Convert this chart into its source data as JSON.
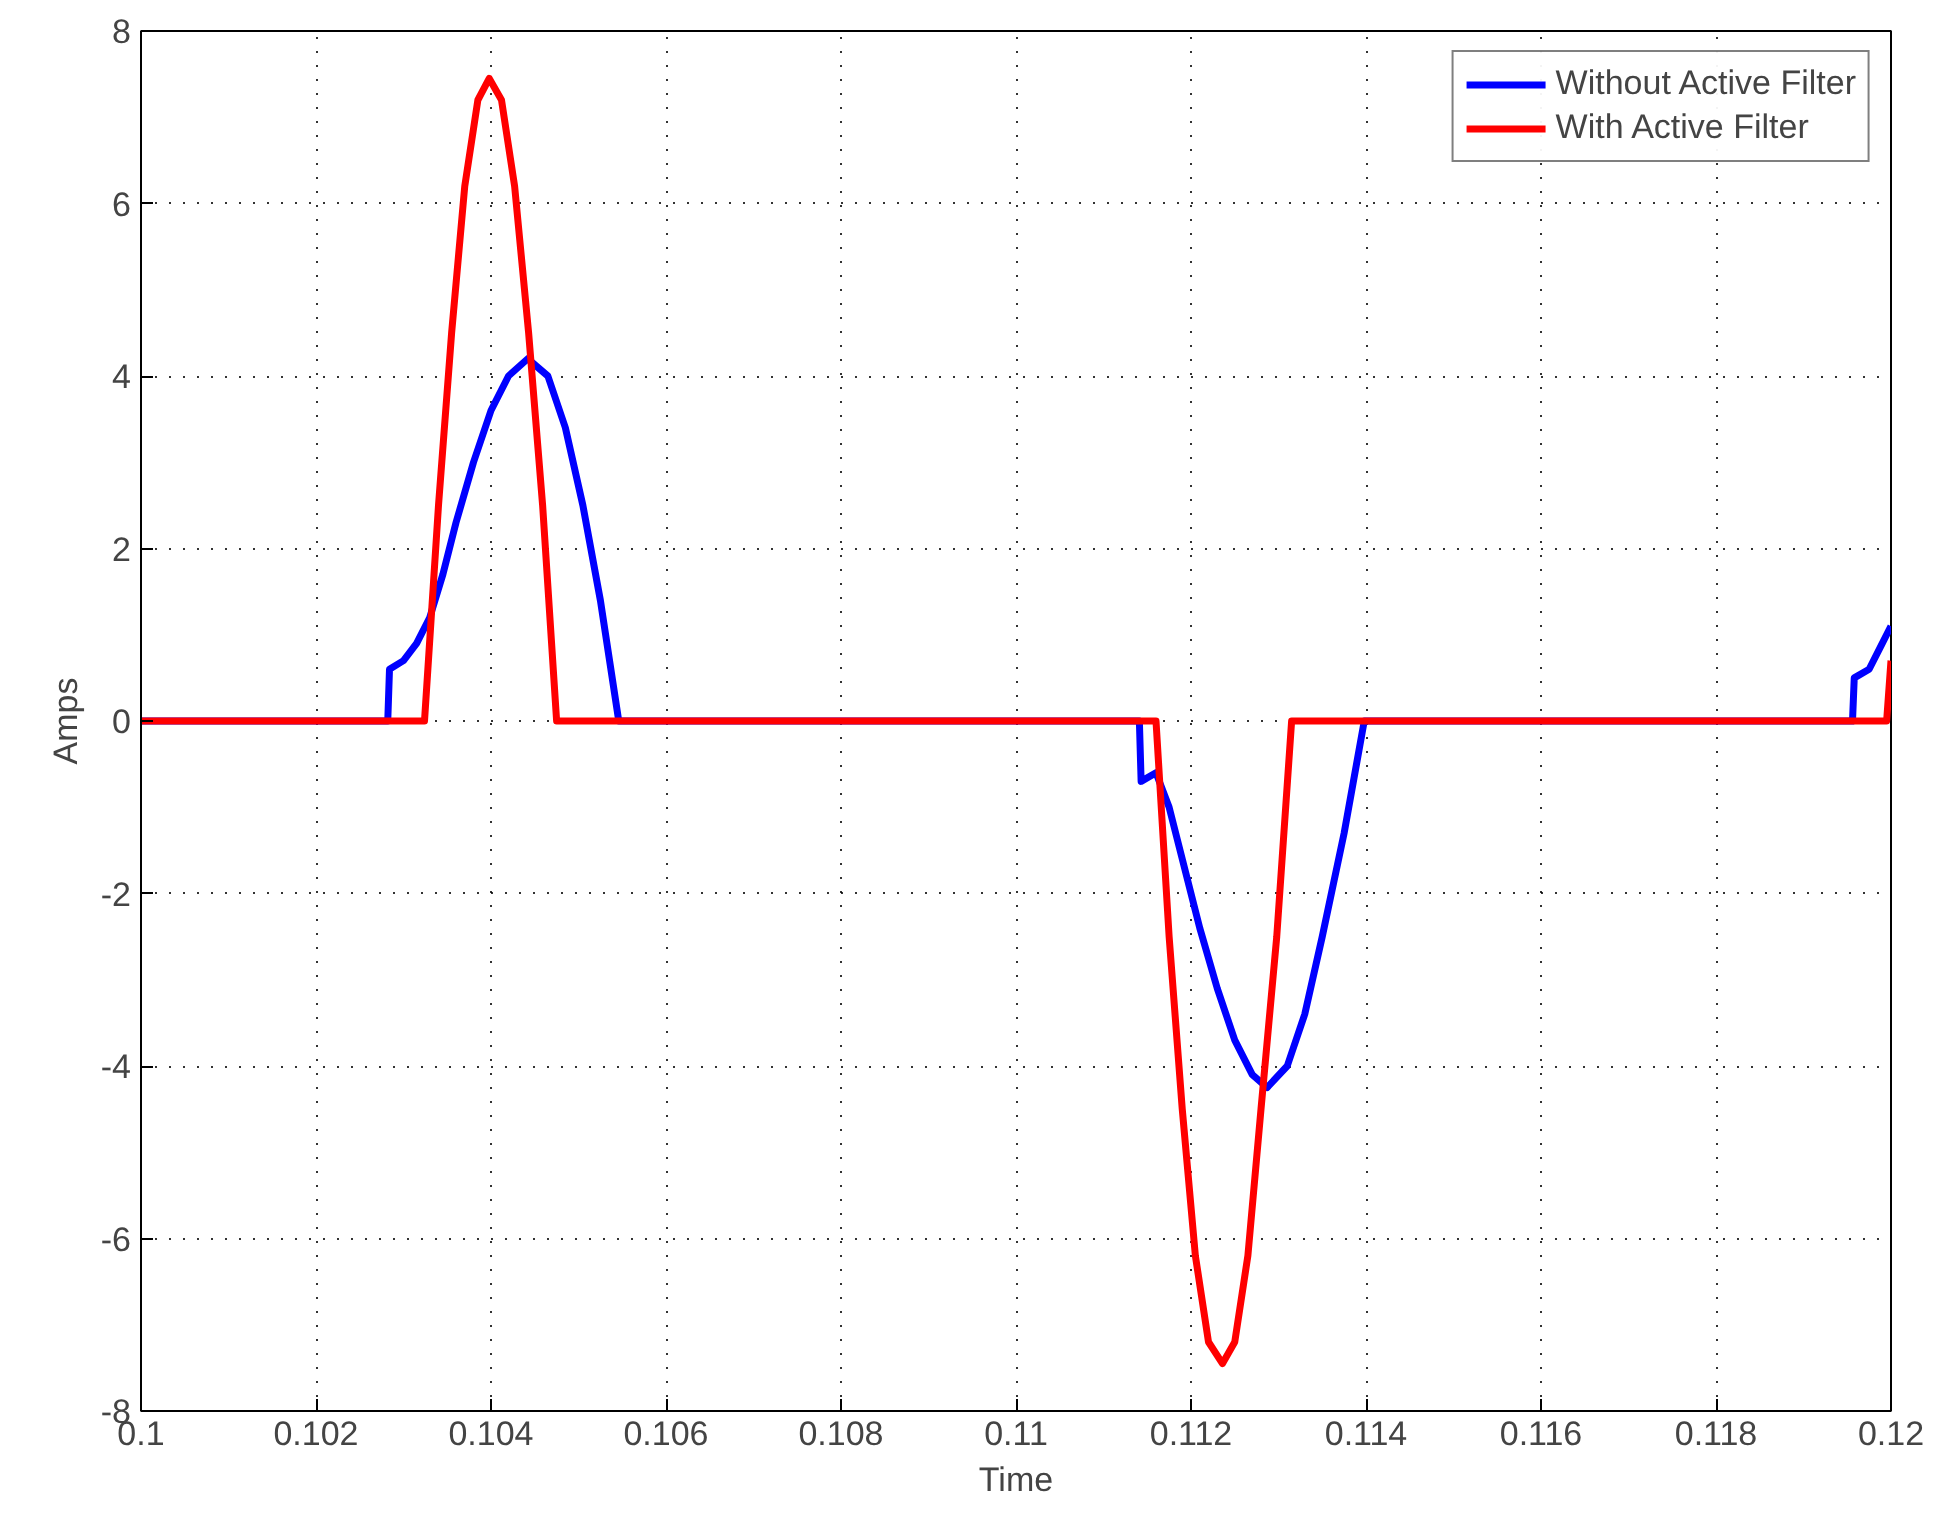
{
  "chart_data": {
    "type": "line",
    "xlabel": "Time",
    "ylabel": "Amps",
    "xlim": [
      0.1,
      0.12
    ],
    "ylim": [
      -8,
      8
    ],
    "xticks": [
      0.1,
      0.102,
      0.104,
      0.106,
      0.108,
      0.11,
      0.112,
      0.114,
      0.116,
      0.118,
      0.12
    ],
    "yticks": [
      -8,
      -6,
      -4,
      -2,
      0,
      2,
      4,
      6,
      8
    ],
    "grid": true,
    "legend": "top right",
    "line_style": "solid",
    "marker": "none",
    "series": [
      {
        "name": "Without Active Filter",
        "color": "#0000ff",
        "x": [
          0.1,
          0.10282,
          0.10284,
          0.103,
          0.10315,
          0.1033,
          0.10345,
          0.1036,
          0.1038,
          0.104,
          0.1042,
          0.10442,
          0.10465,
          0.10485,
          0.10505,
          0.10525,
          0.10546,
          0.11141,
          0.11143,
          0.1116,
          0.11175,
          0.1119,
          0.1121,
          0.1123,
          0.1125,
          0.1127,
          0.11287,
          0.1131,
          0.1133,
          0.1135,
          0.11375,
          0.11398,
          0.11956,
          0.11958,
          0.11975,
          0.1199,
          0.12
        ],
        "values": [
          0,
          0,
          0.6,
          0.7,
          0.9,
          1.2,
          1.7,
          2.3,
          3.0,
          3.6,
          4.0,
          4.2,
          4.0,
          3.4,
          2.5,
          1.4,
          0,
          0,
          -0.7,
          -0.6,
          -1.0,
          -1.6,
          -2.4,
          -3.1,
          -3.7,
          -4.1,
          -4.25,
          -4.0,
          -3.4,
          -2.5,
          -1.3,
          0,
          0,
          0.5,
          0.6,
          0.9,
          1.1
        ]
      },
      {
        "name": "With Active Filter",
        "color": "#ff0000",
        "x": [
          0.1,
          0.10324,
          0.1034,
          0.10355,
          0.1037,
          0.10385,
          0.10398,
          0.10412,
          0.10427,
          0.10443,
          0.10459,
          0.10475,
          0.1116,
          0.11175,
          0.1119,
          0.11205,
          0.1122,
          0.11236,
          0.1125,
          0.11265,
          0.1128,
          0.11298,
          0.11315,
          0.11995,
          0.12
        ],
        "values": [
          0,
          0,
          2.5,
          4.5,
          6.2,
          7.2,
          7.45,
          7.2,
          6.2,
          4.5,
          2.5,
          0,
          0,
          -2.5,
          -4.5,
          -6.2,
          -7.2,
          -7.45,
          -7.2,
          -6.2,
          -4.5,
          -2.5,
          0,
          0,
          0.7
        ]
      }
    ]
  }
}
